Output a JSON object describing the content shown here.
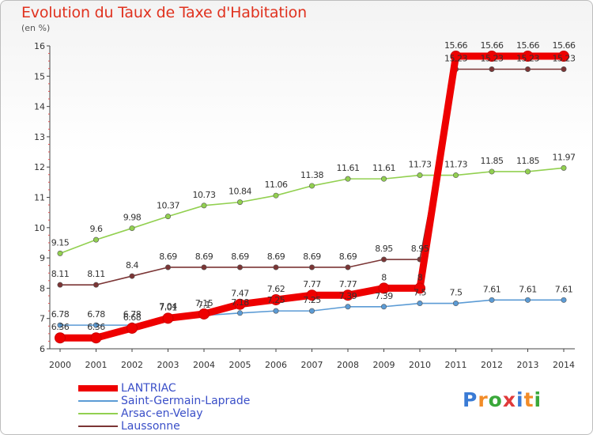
{
  "title": "Evolution du Taux de Taxe d'Habitation",
  "unit_label": "(en %)",
  "logo_text": "Proxiti",
  "logo_colors": [
    "#3a7bd5",
    "#f28c28",
    "#3aa83a",
    "#e03a3a",
    "#3a7bd5",
    "#f28c28",
    "#3aa83a"
  ],
  "chart_data": {
    "type": "line",
    "title": "Evolution du Taux de Taxe d'Habitation",
    "ylabel": "(en %)",
    "xlabel": "",
    "ylim": [
      6,
      16
    ],
    "yticks": [
      "6",
      "7",
      "8",
      "9",
      "10",
      "11",
      "12",
      "13",
      "14",
      "15",
      "16"
    ],
    "x": [
      "2000",
      "2001",
      "2002",
      "2003",
      "2004",
      "2005",
      "2006",
      "2007",
      "2008",
      "2009",
      "2010",
      "2011",
      "2012",
      "2013",
      "2014"
    ],
    "grid": false,
    "legend_position": "bottom-left",
    "series": [
      {
        "name": "LANTRIAC",
        "color": "#ee0000",
        "values": [
          6.36,
          6.36,
          6.68,
          7.01,
          7.15,
          7.47,
          7.62,
          7.77,
          7.77,
          8,
          8,
          15.66,
          15.66,
          15.66,
          15.66
        ],
        "labels": [
          "6.36",
          "6.36",
          "6.68",
          "7.01",
          "7.15",
          "7.47",
          "7.62",
          "7.77",
          "7.77",
          "8",
          "8",
          "15.66",
          "15.66",
          "15.66",
          "15.66"
        ]
      },
      {
        "name": "Saint-Germain-Laprade",
        "color": "#5b9bd5",
        "values": [
          6.78,
          6.78,
          6.78,
          7.04,
          7.1,
          7.18,
          7.25,
          7.25,
          7.39,
          7.39,
          7.5,
          7.5,
          7.61,
          7.61,
          7.61
        ],
        "labels": [
          "6.78",
          "6.78",
          "6.78",
          "7.04",
          "7.1",
          "7.18",
          "7.25",
          "7.25",
          "7.39",
          "7.39",
          "7.5",
          "7.5",
          "7.61",
          "7.61",
          "7.61"
        ]
      },
      {
        "name": "Arsac-en-Velay",
        "color": "#92d050",
        "values": [
          9.15,
          9.6,
          9.98,
          10.37,
          10.73,
          10.84,
          11.06,
          11.38,
          11.61,
          11.61,
          11.73,
          11.73,
          11.85,
          11.85,
          11.97
        ],
        "labels": [
          "9.15",
          "9.6",
          "9.98",
          "10.37",
          "10.73",
          "10.84",
          "11.06",
          "11.38",
          "11.61",
          "11.61",
          "11.73",
          "11.73",
          "11.85",
          "11.85",
          "11.97"
        ]
      },
      {
        "name": "Laussonne",
        "color": "#7b3535",
        "values": [
          8.11,
          8.11,
          8.4,
          8.69,
          8.69,
          8.69,
          8.69,
          8.69,
          8.69,
          8.95,
          8.95,
          15.23,
          15.23,
          15.23,
          15.23
        ],
        "labels": [
          "8.11",
          "8.11",
          "8.4",
          "8.69",
          "8.69",
          "8.69",
          "8.69",
          "8.69",
          "8.69",
          "8.95",
          "8.95",
          "15.23",
          "15.23",
          "15.23",
          "15.23"
        ]
      }
    ]
  }
}
